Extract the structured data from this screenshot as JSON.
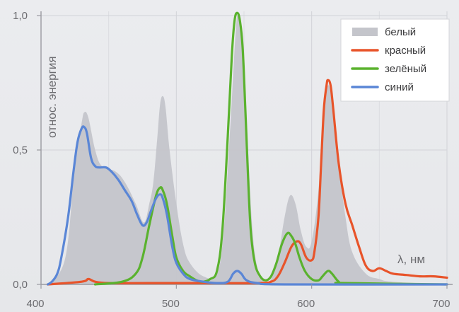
{
  "chart_data": {
    "type": "line",
    "xlabel": "λ, нм",
    "ylabel": "относ. энергия",
    "xlim": [
      400,
      700
    ],
    "ylim": [
      0,
      1.0
    ],
    "x_ticks": [
      {
        "value": 400,
        "label": "400"
      },
      {
        "value": 500,
        "label": "500"
      },
      {
        "value": 600,
        "label": "600"
      },
      {
        "value": 700,
        "label": "700"
      }
    ],
    "y_ticks": [
      {
        "value": 0,
        "label": "0,0"
      },
      {
        "value": 0.5,
        "label": "0,5"
      },
      {
        "value": 1.0,
        "label": "1,0"
      }
    ],
    "grid": true,
    "legend_position": "top-right",
    "series": [
      {
        "name": "белый",
        "style": "area",
        "color": "#c4c5cb",
        "points": [
          [
            405,
            0
          ],
          [
            418,
            0.1
          ],
          [
            425,
            0.45
          ],
          [
            430,
            0.6
          ],
          [
            432,
            0.64
          ],
          [
            435,
            0.62
          ],
          [
            440,
            0.5
          ],
          [
            445,
            0.44
          ],
          [
            455,
            0.42
          ],
          [
            462,
            0.38
          ],
          [
            470,
            0.3
          ],
          [
            476,
            0.23
          ],
          [
            480,
            0.3
          ],
          [
            483,
            0.38
          ],
          [
            486,
            0.55
          ],
          [
            488,
            0.67
          ],
          [
            490,
            0.7
          ],
          [
            492,
            0.66
          ],
          [
            495,
            0.5
          ],
          [
            500,
            0.3
          ],
          [
            505,
            0.15
          ],
          [
            510,
            0.08
          ],
          [
            520,
            0.03
          ],
          [
            530,
            0.04
          ],
          [
            535,
            0.2
          ],
          [
            540,
            0.6
          ],
          [
            544,
            0.95
          ],
          [
            546,
            1.0
          ],
          [
            548,
            0.95
          ],
          [
            552,
            0.6
          ],
          [
            556,
            0.22
          ],
          [
            560,
            0.06
          ],
          [
            565,
            0.01
          ],
          [
            570,
            0.02
          ],
          [
            575,
            0.1
          ],
          [
            580,
            0.25
          ],
          [
            584,
            0.33
          ],
          [
            588,
            0.3
          ],
          [
            592,
            0.2
          ],
          [
            596,
            0.14
          ],
          [
            600,
            0.16
          ],
          [
            605,
            0.35
          ],
          [
            609,
            0.65
          ],
          [
            612,
            0.74
          ],
          [
            615,
            0.68
          ],
          [
            620,
            0.45
          ],
          [
            625,
            0.25
          ],
          [
            630,
            0.12
          ],
          [
            640,
            0.04
          ],
          [
            650,
            0.02
          ],
          [
            660,
            0.01
          ],
          [
            700,
            0
          ]
        ]
      },
      {
        "name": "красный",
        "style": "line",
        "color": "#e8542a",
        "points": [
          [
            405,
            0
          ],
          [
            430,
            0.01
          ],
          [
            435,
            0.02
          ],
          [
            440,
            0.01
          ],
          [
            450,
            0.005
          ],
          [
            480,
            0.005
          ],
          [
            520,
            0.005
          ],
          [
            560,
            0.005
          ],
          [
            570,
            0.01
          ],
          [
            575,
            0.03
          ],
          [
            580,
            0.08
          ],
          [
            585,
            0.14
          ],
          [
            589,
            0.16
          ],
          [
            592,
            0.15
          ],
          [
            596,
            0.1
          ],
          [
            600,
            0.09
          ],
          [
            602,
            0.12
          ],
          [
            605,
            0.25
          ],
          [
            607,
            0.45
          ],
          [
            609,
            0.65
          ],
          [
            611,
            0.74
          ],
          [
            612,
            0.76
          ],
          [
            614,
            0.74
          ],
          [
            616,
            0.65
          ],
          [
            620,
            0.45
          ],
          [
            625,
            0.3
          ],
          [
            630,
            0.22
          ],
          [
            635,
            0.14
          ],
          [
            640,
            0.07
          ],
          [
            645,
            0.05
          ],
          [
            650,
            0.06
          ],
          [
            655,
            0.05
          ],
          [
            660,
            0.04
          ],
          [
            670,
            0.035
          ],
          [
            680,
            0.03
          ],
          [
            690,
            0.03
          ],
          [
            700,
            0.025
          ]
        ]
      },
      {
        "name": "зелёный",
        "style": "line",
        "color": "#5ab22e",
        "points": [
          [
            440,
            0
          ],
          [
            460,
            0.01
          ],
          [
            470,
            0.04
          ],
          [
            475,
            0.1
          ],
          [
            480,
            0.22
          ],
          [
            485,
            0.33
          ],
          [
            488,
            0.36
          ],
          [
            490,
            0.35
          ],
          [
            493,
            0.3
          ],
          [
            497,
            0.18
          ],
          [
            500,
            0.1
          ],
          [
            505,
            0.05
          ],
          [
            510,
            0.03
          ],
          [
            515,
            0.015
          ],
          [
            520,
            0.01
          ],
          [
            525,
            0.02
          ],
          [
            530,
            0.05
          ],
          [
            534,
            0.2
          ],
          [
            538,
            0.55
          ],
          [
            541,
            0.85
          ],
          [
            543,
            0.98
          ],
          [
            545,
            1.01
          ],
          [
            547,
            0.98
          ],
          [
            549,
            0.88
          ],
          [
            551,
            0.65
          ],
          [
            553,
            0.4
          ],
          [
            555,
            0.2
          ],
          [
            558,
            0.08
          ],
          [
            562,
            0.03
          ],
          [
            566,
            0.015
          ],
          [
            570,
            0.03
          ],
          [
            574,
            0.08
          ],
          [
            578,
            0.15
          ],
          [
            582,
            0.19
          ],
          [
            585,
            0.18
          ],
          [
            588,
            0.15
          ],
          [
            591,
            0.1
          ],
          [
            595,
            0.05
          ],
          [
            600,
            0.02
          ],
          [
            605,
            0.015
          ],
          [
            608,
            0.03
          ],
          [
            612,
            0.05
          ],
          [
            615,
            0.04
          ],
          [
            620,
            0.01
          ],
          [
            625,
            0.005
          ],
          [
            700,
            0
          ]
        ]
      },
      {
        "name": "синий",
        "style": "line",
        "color": "#5a86d6",
        "points": [
          [
            405,
            0
          ],
          [
            408,
            0.01
          ],
          [
            412,
            0.04
          ],
          [
            415,
            0.1
          ],
          [
            420,
            0.25
          ],
          [
            424,
            0.42
          ],
          [
            427,
            0.53
          ],
          [
            430,
            0.58
          ],
          [
            432,
            0.585
          ],
          [
            434,
            0.56
          ],
          [
            437,
            0.47
          ],
          [
            440,
            0.44
          ],
          [
            443,
            0.435
          ],
          [
            448,
            0.435
          ],
          [
            452,
            0.42
          ],
          [
            457,
            0.39
          ],
          [
            462,
            0.35
          ],
          [
            467,
            0.31
          ],
          [
            471,
            0.26
          ],
          [
            475,
            0.22
          ],
          [
            478,
            0.23
          ],
          [
            481,
            0.27
          ],
          [
            485,
            0.32
          ],
          [
            488,
            0.335
          ],
          [
            490,
            0.32
          ],
          [
            493,
            0.26
          ],
          [
            497,
            0.14
          ],
          [
            500,
            0.08
          ],
          [
            505,
            0.04
          ],
          [
            510,
            0.02
          ],
          [
            520,
            0.01
          ],
          [
            530,
            0.005
          ],
          [
            538,
            0.01
          ],
          [
            542,
            0.04
          ],
          [
            545,
            0.05
          ],
          [
            548,
            0.04
          ],
          [
            552,
            0.015
          ],
          [
            560,
            0.005
          ],
          [
            580,
            0
          ],
          [
            700,
            0
          ]
        ]
      }
    ]
  }
}
